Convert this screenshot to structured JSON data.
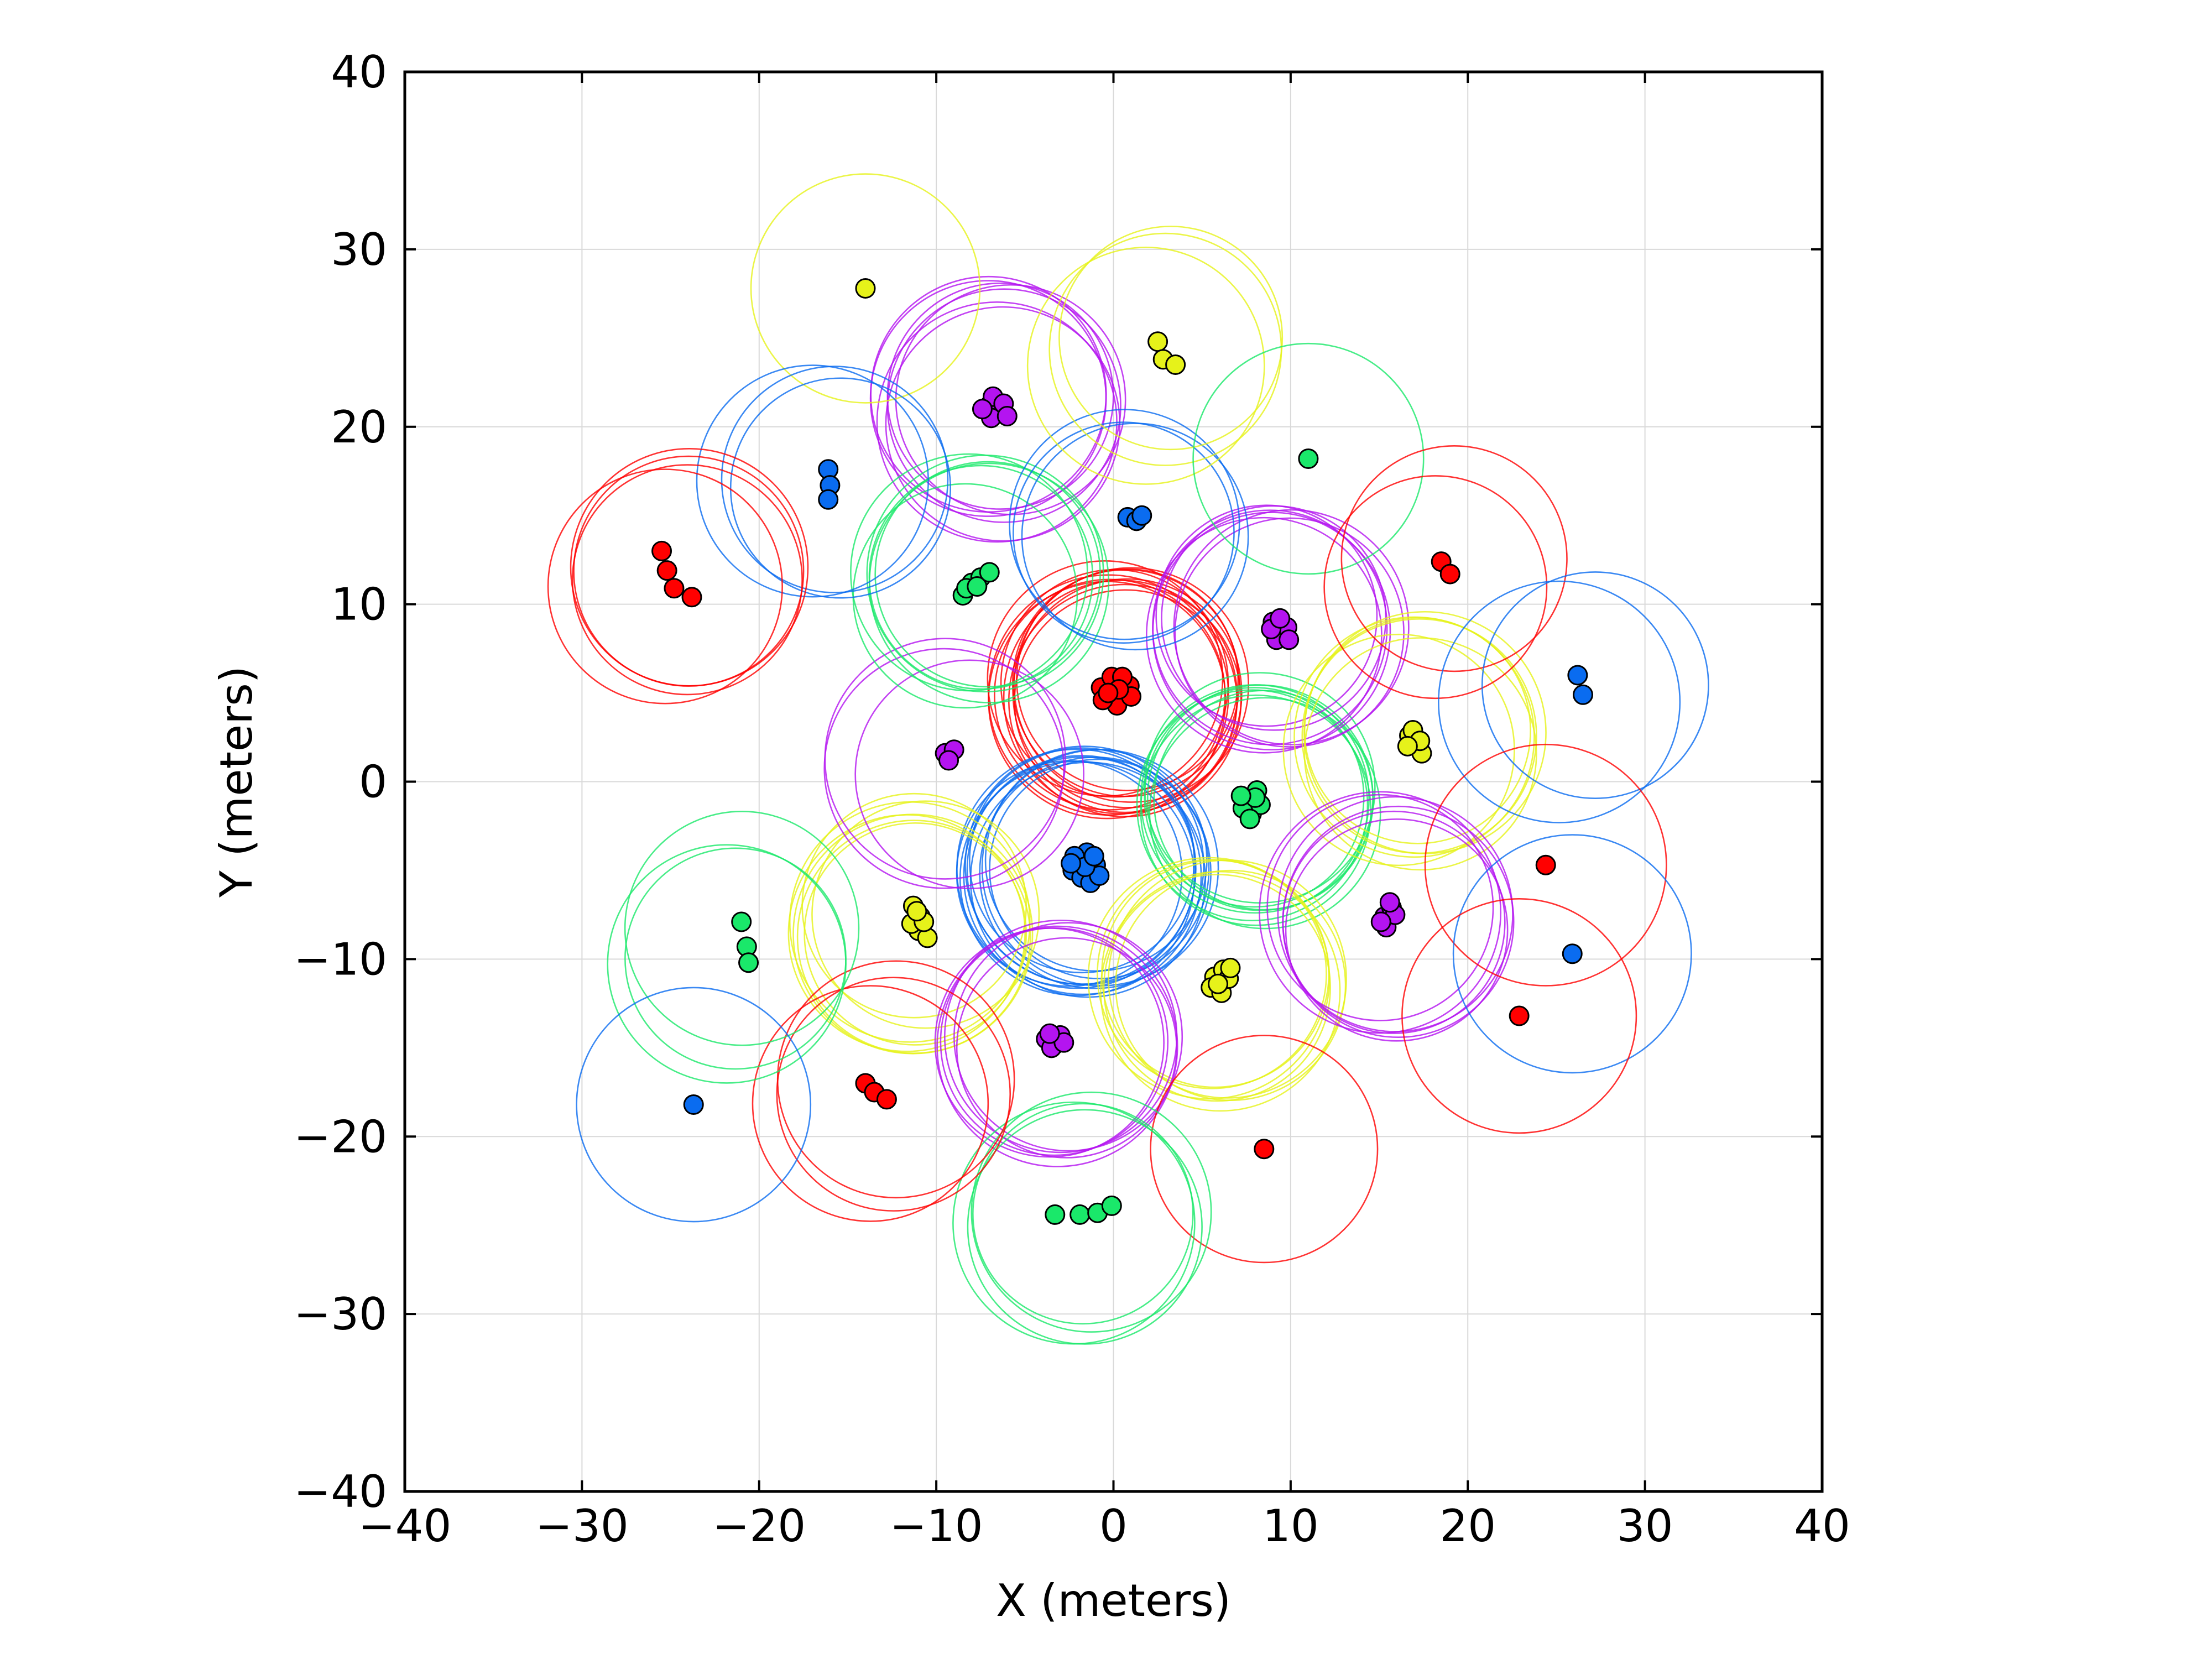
{
  "chart_data": {
    "type": "scatter",
    "title": "",
    "xlabel": "X (meters)",
    "ylabel": "Y (meters)",
    "xlim": [
      -40,
      40
    ],
    "ylim": [
      -40,
      40
    ],
    "xticks": [
      -40,
      -30,
      -20,
      -10,
      0,
      10,
      20,
      30,
      40
    ],
    "yticks": [
      -40,
      -30,
      -20,
      -10,
      0,
      10,
      20,
      30,
      40
    ],
    "xtick_labels": [
      "−40",
      "−30",
      "−20",
      "−10",
      "0",
      "10",
      "20",
      "30",
      "40"
    ],
    "ytick_labels": [
      "−40",
      "−30",
      "−20",
      "−10",
      "0",
      "10",
      "20",
      "30",
      "40"
    ],
    "grid": true,
    "colors": {
      "red": "#ff0000",
      "blue": "#0a6cf0",
      "green": "#1ae86a",
      "yellow": "#e6f21a",
      "purple": "#b414f0"
    },
    "circle_radius": 6.5,
    "groups": [
      {
        "color": "red",
        "points": [
          [
            0.0,
            5.5
          ],
          [
            0.6,
            4.9
          ],
          [
            -0.4,
            4.7
          ],
          [
            0.9,
            5.4
          ],
          [
            -0.7,
            5.3
          ],
          [
            0.2,
            4.3
          ],
          [
            -0.1,
            5.9
          ],
          [
            0.5,
            5.9
          ],
          [
            -0.6,
            4.6
          ],
          [
            1.0,
            4.8
          ],
          [
            0.3,
            5.2
          ],
          [
            -0.3,
            5.0
          ]
        ]
      },
      {
        "color": "blue",
        "points": [
          [
            -2.0,
            -4.5
          ],
          [
            -1.5,
            -4.0
          ],
          [
            -1.2,
            -5.1
          ],
          [
            -2.3,
            -5.0
          ],
          [
            -1.0,
            -4.7
          ],
          [
            -1.8,
            -5.4
          ],
          [
            -1.3,
            -5.7
          ],
          [
            -2.2,
            -4.2
          ],
          [
            -0.8,
            -5.3
          ],
          [
            -1.6,
            -4.8
          ],
          [
            -2.4,
            -4.6
          ],
          [
            -1.1,
            -4.2
          ]
        ]
      },
      {
        "color": "green",
        "points": [
          [
            7.5,
            -1.0
          ],
          [
            8.1,
            -0.5
          ],
          [
            7.8,
            -1.8
          ],
          [
            7.3,
            -1.5
          ],
          [
            8.3,
            -1.3
          ],
          [
            7.7,
            -2.1
          ],
          [
            8.0,
            -0.9
          ],
          [
            7.2,
            -0.8
          ]
        ]
      },
      {
        "color": "purple",
        "points": [
          [
            9.0,
            9.0
          ],
          [
            9.5,
            8.5
          ],
          [
            9.2,
            8.0
          ],
          [
            9.8,
            8.7
          ],
          [
            8.9,
            8.6
          ],
          [
            9.4,
            9.2
          ],
          [
            9.9,
            8.0
          ]
        ]
      },
      {
        "color": "yellow",
        "points": [
          [
            16.7,
            2.6
          ],
          [
            17.1,
            2.0
          ],
          [
            16.9,
            2.9
          ],
          [
            17.4,
            1.6
          ],
          [
            17.3,
            2.3
          ],
          [
            16.6,
            2.0
          ]
        ]
      },
      {
        "color": "yellow",
        "points": [
          [
            5.7,
            -11.0
          ],
          [
            6.2,
            -10.6
          ],
          [
            5.5,
            -11.6
          ],
          [
            6.1,
            -11.9
          ],
          [
            6.5,
            -11.1
          ],
          [
            5.9,
            -11.4
          ],
          [
            6.6,
            -10.5
          ]
        ]
      },
      {
        "color": "yellow",
        "points": [
          [
            -11.3,
            -7.0
          ],
          [
            -10.9,
            -7.6
          ],
          [
            -11.0,
            -8.4
          ],
          [
            -10.5,
            -8.8
          ],
          [
            -11.4,
            -8.0
          ],
          [
            -10.7,
            -7.9
          ],
          [
            -11.1,
            -7.3
          ]
        ]
      },
      {
        "color": "purple",
        "points": [
          [
            15.3,
            -7.6
          ],
          [
            15.7,
            -7.1
          ],
          [
            15.4,
            -8.2
          ],
          [
            15.9,
            -7.5
          ],
          [
            15.1,
            -7.9
          ],
          [
            15.6,
            -6.8
          ]
        ]
      },
      {
        "color": "purple",
        "points": [
          [
            -3.8,
            -14.5
          ],
          [
            -3.3,
            -14.8
          ],
          [
            -3.0,
            -14.3
          ],
          [
            -3.5,
            -15.0
          ],
          [
            -2.8,
            -14.7
          ],
          [
            -3.6,
            -14.2
          ]
        ]
      },
      {
        "color": "purple",
        "points": [
          [
            -9.5,
            1.6
          ],
          [
            -9.0,
            1.8
          ],
          [
            -9.3,
            1.2
          ]
        ]
      },
      {
        "color": "purple",
        "points": [
          [
            -7.0,
            21.2
          ],
          [
            -6.5,
            20.8
          ],
          [
            -6.8,
            21.7
          ],
          [
            -6.2,
            21.3
          ],
          [
            -6.9,
            20.5
          ],
          [
            -7.4,
            21.0
          ],
          [
            -6.0,
            20.6
          ]
        ]
      },
      {
        "color": "green",
        "points": [
          [
            -8.5,
            10.5
          ],
          [
            -8.0,
            11.2
          ],
          [
            -7.5,
            11.5
          ],
          [
            -7.0,
            11.8
          ],
          [
            -8.3,
            10.9
          ],
          [
            -7.7,
            11.0
          ]
        ]
      },
      {
        "color": "blue",
        "points": [
          [
            0.8,
            14.9
          ],
          [
            1.3,
            14.7
          ],
          [
            1.6,
            15.0
          ]
        ]
      },
      {
        "color": "yellow",
        "points": [
          [
            2.5,
            24.8
          ],
          [
            2.8,
            23.8
          ],
          [
            3.5,
            23.5
          ]
        ]
      },
      {
        "color": "yellow",
        "points": [
          [
            -14.0,
            27.8
          ]
        ]
      },
      {
        "color": "blue",
        "points": [
          [
            -16.1,
            17.6
          ],
          [
            -16.0,
            16.7
          ],
          [
            -16.1,
            15.9
          ]
        ]
      },
      {
        "color": "red",
        "points": [
          [
            -25.5,
            13.0
          ],
          [
            -25.2,
            11.9
          ],
          [
            -24.8,
            10.9
          ],
          [
            -23.8,
            10.4
          ]
        ]
      },
      {
        "color": "green",
        "points": [
          [
            11.0,
            18.2
          ]
        ]
      },
      {
        "color": "red",
        "points": [
          [
            18.5,
            12.4
          ],
          [
            19.0,
            11.7
          ]
        ]
      },
      {
        "color": "blue",
        "points": [
          [
            26.2,
            6.0
          ],
          [
            26.5,
            4.9
          ]
        ]
      },
      {
        "color": "red",
        "points": [
          [
            24.4,
            -4.7
          ]
        ]
      },
      {
        "color": "blue",
        "points": [
          [
            25.9,
            -9.7
          ]
        ]
      },
      {
        "color": "red",
        "points": [
          [
            22.9,
            -13.2
          ]
        ]
      },
      {
        "color": "red",
        "points": [
          [
            8.5,
            -20.7
          ]
        ]
      },
      {
        "color": "green",
        "points": [
          [
            -3.3,
            -24.4
          ],
          [
            -1.9,
            -24.4
          ],
          [
            -0.9,
            -24.3
          ],
          [
            -0.1,
            -23.9
          ]
        ]
      },
      {
        "color": "red",
        "points": [
          [
            -14.0,
            -17.0
          ],
          [
            -13.5,
            -17.5
          ],
          [
            -12.8,
            -17.9
          ]
        ]
      },
      {
        "color": "green",
        "points": [
          [
            -21.0,
            -7.9
          ],
          [
            -20.7,
            -9.3
          ],
          [
            -20.6,
            -10.2
          ]
        ]
      },
      {
        "color": "blue",
        "points": [
          [
            -23.7,
            -18.2
          ]
        ]
      }
    ]
  }
}
